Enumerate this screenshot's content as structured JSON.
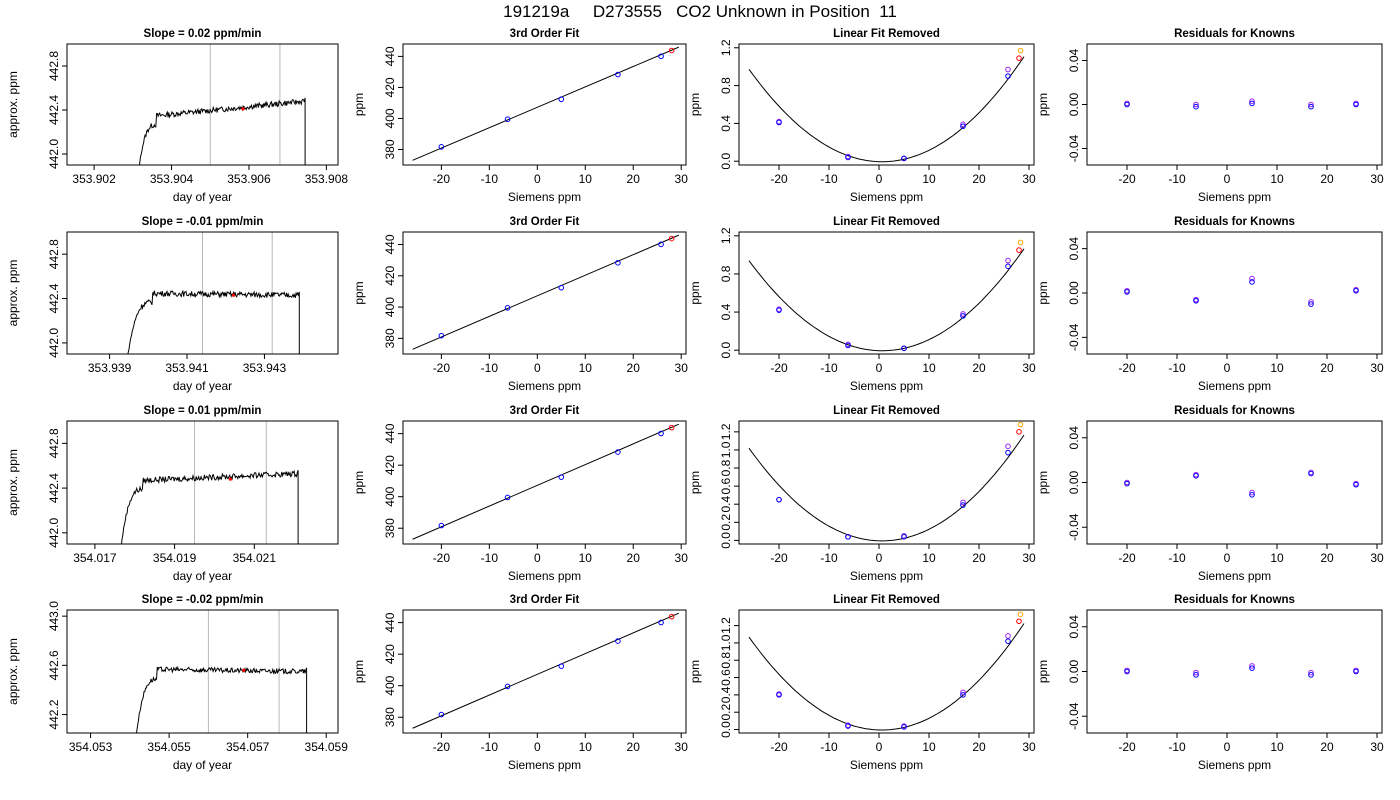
{
  "page_title": "191219a     D273555   CO2 Unknown in Position  11",
  "colors": {
    "line": "#000000",
    "grid_vline": "#b8b8b8",
    "known_points": "#0000ff",
    "unknown_point": "#ff0000",
    "purple_points": "#a020f0",
    "orange_points": "#ffa500"
  },
  "chart_data": [
    {
      "type": "line",
      "row": 0,
      "col": 0,
      "title": "Slope =  0.02  ppm/min",
      "xlabel": "day of year",
      "ylabel": "approx. ppm",
      "xlim": [
        353.9013,
        353.9083
      ],
      "ylim": [
        441.9,
        443.0
      ],
      "xticks": [
        "353.902",
        "353.904",
        "353.906",
        "353.908"
      ],
      "xtick_values": [
        353.902,
        353.904,
        353.906,
        353.908
      ],
      "yticks": [
        "442.0",
        "442.4",
        "442.8"
      ],
      "ytick_values": [
        442.0,
        442.4,
        442.8
      ],
      "vlines": [
        353.905,
        353.9068
      ],
      "trace": {
        "x_start": 353.9031,
        "x_end": 353.90745,
        "plateau_start": 353.9036,
        "level_start": 442.33,
        "level_end": 442.48,
        "noise": 0.025
      },
      "highlight_points": [
        {
          "x": 353.90585,
          "y": 442.41
        }
      ]
    },
    {
      "type": "line",
      "row": 1,
      "col": 0,
      "title": "Slope =  -0.01  ppm/min",
      "xlabel": "day of year",
      "ylabel": "approx. ppm",
      "xlim": [
        353.9379,
        353.9449
      ],
      "ylim": [
        441.9,
        443.0
      ],
      "xticks": [
        "353.939",
        "353.941",
        "353.943"
      ],
      "xtick_values": [
        353.939,
        353.941,
        353.943
      ],
      "yticks": [
        "442.0",
        "442.4",
        "442.8"
      ],
      "ytick_values": [
        442.0,
        442.4,
        442.8
      ],
      "vlines": [
        353.9414,
        353.9432
      ],
      "trace": {
        "x_start": 353.9394,
        "x_end": 353.9439,
        "plateau_start": 353.9401,
        "level_start": 442.45,
        "level_end": 442.43,
        "noise": 0.025
      },
      "highlight_points": [
        {
          "x": 353.9422,
          "y": 442.43
        }
      ]
    },
    {
      "type": "line",
      "row": 2,
      "col": 0,
      "title": "Slope =  0.01  ppm/min",
      "xlabel": "day of year",
      "ylabel": "approx. ppm",
      "xlim": [
        354.0163,
        354.0231
      ],
      "ylim": [
        441.9,
        443.0
      ],
      "xticks": [
        "354.017",
        "354.019",
        "354.021"
      ],
      "xtick_values": [
        354.017,
        354.019,
        354.021
      ],
      "yticks": [
        "442.0",
        "442.4",
        "442.8"
      ],
      "ytick_values": [
        442.0,
        442.4,
        442.8
      ],
      "vlines": [
        354.0195,
        354.0213
      ],
      "trace": {
        "x_start": 354.0176,
        "x_end": 354.0221,
        "plateau_start": 354.0182,
        "level_start": 442.46,
        "level_end": 442.53,
        "noise": 0.025
      },
      "highlight_points": [
        {
          "x": 354.0204,
          "y": 442.48
        }
      ]
    },
    {
      "type": "line",
      "row": 3,
      "col": 0,
      "title": "Slope =  -0.02  ppm/min",
      "xlabel": "day of year",
      "ylabel": "approx. ppm",
      "xlim": [
        354.0524,
        354.0593
      ],
      "ylim": [
        442.05,
        443.05
      ],
      "xticks": [
        "354.053",
        "354.055",
        "354.057",
        "354.059"
      ],
      "xtick_values": [
        354.053,
        354.055,
        354.057,
        354.059
      ],
      "yticks": [
        "442.2",
        "442.6",
        "443.0"
      ],
      "ytick_values": [
        442.2,
        442.6,
        443.0
      ],
      "vlines": [
        354.056,
        354.0578
      ],
      "trace": {
        "x_start": 354.0541,
        "x_end": 354.0585,
        "plateau_start": 354.0547,
        "level_start": 442.57,
        "level_end": 442.55,
        "noise": 0.02
      },
      "highlight_points": [
        {
          "x": 354.0569,
          "y": 442.56
        }
      ]
    },
    {
      "type": "scatter",
      "row": 0,
      "col": 1,
      "title": "3rd Order Fit",
      "xlabel": "Siemens ppm",
      "ylabel": "ppm",
      "xlim": [
        -28,
        31
      ],
      "ylim": [
        370,
        448
      ],
      "xticks": [
        "-20",
        "-10",
        "0",
        "10",
        "20",
        "30"
      ],
      "xtick_values": [
        -20,
        -10,
        0,
        10,
        20,
        30
      ],
      "yticks": [
        "380",
        "400",
        "420",
        "440"
      ],
      "ytick_values": [
        380,
        400,
        420,
        440
      ],
      "fit_line": {
        "x": [
          -26,
          29.5
        ],
        "y": [
          373,
          446
        ]
      },
      "known_points": {
        "x": [
          -20,
          -6.2,
          5.0,
          16.8,
          25.8
        ],
        "y": [
          381.7,
          399.5,
          412.4,
          428.3,
          440.1
        ]
      },
      "unknown_point": {
        "x": 28.0,
        "y": 443.8
      }
    },
    {
      "type": "scatter",
      "row": 1,
      "col": 1,
      "title": "3rd Order Fit",
      "xlabel": "Siemens ppm",
      "ylabel": "ppm",
      "xlim": [
        -28,
        31
      ],
      "ylim": [
        370,
        448
      ],
      "xticks": [
        "-20",
        "-10",
        "0",
        "10",
        "20",
        "30"
      ],
      "xtick_values": [
        -20,
        -10,
        0,
        10,
        20,
        30
      ],
      "yticks": [
        "380",
        "400",
        "420",
        "440"
      ],
      "ytick_values": [
        380,
        400,
        420,
        440
      ],
      "fit_line": {
        "x": [
          -26,
          29.5
        ],
        "y": [
          373,
          446
        ]
      },
      "known_points": {
        "x": [
          -20,
          -6.2,
          5.0,
          16.8,
          25.8
        ],
        "y": [
          381.7,
          399.5,
          412.4,
          428.3,
          440.1
        ]
      },
      "unknown_point": {
        "x": 28.0,
        "y": 443.8
      }
    },
    {
      "type": "scatter",
      "row": 2,
      "col": 1,
      "title": "3rd Order Fit",
      "xlabel": "Siemens ppm",
      "ylabel": "ppm",
      "xlim": [
        -28,
        31
      ],
      "ylim": [
        370,
        448
      ],
      "xticks": [
        "-20",
        "-10",
        "0",
        "10",
        "20",
        "30"
      ],
      "xtick_values": [
        -20,
        -10,
        0,
        10,
        20,
        30
      ],
      "yticks": [
        "380",
        "400",
        "420",
        "440"
      ],
      "ytick_values": [
        380,
        400,
        420,
        440
      ],
      "fit_line": {
        "x": [
          -26,
          29.5
        ],
        "y": [
          373,
          446
        ]
      },
      "known_points": {
        "x": [
          -20,
          -6.2,
          5.0,
          16.8,
          25.8
        ],
        "y": [
          381.7,
          399.5,
          412.4,
          428.3,
          440.1
        ]
      },
      "unknown_point": {
        "x": 28.0,
        "y": 443.8
      }
    },
    {
      "type": "scatter",
      "row": 3,
      "col": 1,
      "title": "3rd Order Fit",
      "xlabel": "Siemens ppm",
      "ylabel": "ppm",
      "xlim": [
        -28,
        31
      ],
      "ylim": [
        370,
        448
      ],
      "xticks": [
        "-20",
        "-10",
        "0",
        "10",
        "20",
        "30"
      ],
      "xtick_values": [
        -20,
        -10,
        0,
        10,
        20,
        30
      ],
      "yticks": [
        "380",
        "400",
        "420",
        "440"
      ],
      "ytick_values": [
        380,
        400,
        420,
        440
      ],
      "fit_line": {
        "x": [
          -26,
          29.5
        ],
        "y": [
          373,
          446
        ]
      },
      "known_points": {
        "x": [
          -20,
          -6.2,
          5.0,
          16.8,
          25.8
        ],
        "y": [
          381.7,
          399.5,
          412.4,
          428.3,
          440.1
        ]
      },
      "unknown_point": {
        "x": 28.0,
        "y": 443.8
      }
    },
    {
      "type": "scatter",
      "row": 0,
      "col": 2,
      "title": "Linear Fit Removed",
      "xlabel": "Siemens ppm",
      "ylabel": "ppm",
      "xlim": [
        -28,
        31
      ],
      "ylim": [
        -0.04,
        1.24
      ],
      "xticks": [
        "-20",
        "-10",
        "0",
        "10",
        "20",
        "30"
      ],
      "xtick_values": [
        -20,
        -10,
        0,
        10,
        20,
        30
      ],
      "yticks": [
        "0.0",
        "0.4",
        "0.8",
        "1.2"
      ],
      "ytick_values": [
        0.0,
        0.4,
        0.8,
        1.2
      ],
      "curve": {
        "a": 0.00138,
        "b": -0.00172,
        "c": -0.005,
        "x_from": -26,
        "x_to": 29
      },
      "blue_points": {
        "x": [
          -20,
          -6.2,
          5.0,
          16.8,
          25.8
        ],
        "y": [
          0.41,
          0.04,
          0.03,
          0.37,
          0.9
        ]
      },
      "purple_points": {
        "x": [
          -20,
          -6.2,
          5.0,
          16.8,
          25.8
        ],
        "y": [
          0.42,
          0.05,
          0.03,
          0.39,
          0.97
        ]
      },
      "red_points": {
        "x": [
          28.0
        ],
        "y": [
          1.09
        ]
      },
      "orange_points": {
        "x": [
          28.3
        ],
        "y": [
          1.17
        ]
      }
    },
    {
      "type": "scatter",
      "row": 1,
      "col": 2,
      "title": "Linear Fit Removed",
      "xlabel": "Siemens ppm",
      "ylabel": "ppm",
      "xlim": [
        -28,
        31
      ],
      "ylim": [
        -0.04,
        1.24
      ],
      "xticks": [
        "-20",
        "-10",
        "0",
        "10",
        "20",
        "30"
      ],
      "xtick_values": [
        -20,
        -10,
        0,
        10,
        20,
        30
      ],
      "yticks": [
        "0.0",
        "0.4",
        "0.8",
        "1.2"
      ],
      "ytick_values": [
        0.0,
        0.4,
        0.8,
        1.2
      ],
      "curve": {
        "a": 0.00133,
        "b": -0.00172,
        "c": -0.005,
        "x_from": -26,
        "x_to": 29
      },
      "blue_points": {
        "x": [
          -20,
          -6.2,
          5.0,
          16.8,
          25.8
        ],
        "y": [
          0.42,
          0.05,
          0.02,
          0.36,
          0.88
        ]
      },
      "purple_points": {
        "x": [
          -20,
          -6.2,
          5.0,
          16.8,
          25.8
        ],
        "y": [
          0.43,
          0.06,
          0.02,
          0.38,
          0.94
        ]
      },
      "red_points": {
        "x": [
          28.0
        ],
        "y": [
          1.05
        ]
      },
      "orange_points": {
        "x": [
          28.3
        ],
        "y": [
          1.13
        ]
      }
    },
    {
      "type": "scatter",
      "row": 2,
      "col": 2,
      "title": "Linear Fit Removed",
      "xlabel": "Siemens ppm",
      "ylabel": "ppm",
      "xlim": [
        -28,
        31
      ],
      "ylim": [
        -0.04,
        1.32
      ],
      "xticks": [
        "-20",
        "-10",
        "0",
        "10",
        "20",
        "30"
      ],
      "xtick_values": [
        -20,
        -10,
        0,
        10,
        20,
        30
      ],
      "yticks": [
        "0.0",
        "0.2",
        "0.4",
        "0.6",
        "0.8",
        "1.0",
        "1.2"
      ],
      "ytick_values": [
        0.0,
        0.2,
        0.4,
        0.6,
        0.8,
        1.0,
        1.2
      ],
      "curve": {
        "a": 0.00145,
        "b": -0.0017,
        "c": -0.005,
        "x_from": -26,
        "x_to": 29
      },
      "blue_points": {
        "x": [
          -20,
          -6.2,
          5.0,
          16.8,
          25.8
        ],
        "y": [
          0.45,
          0.04,
          0.04,
          0.39,
          0.97
        ]
      },
      "purple_points": {
        "x": [
          -20,
          -6.2,
          5.0,
          16.8,
          25.8
        ],
        "y": [
          0.45,
          0.04,
          0.05,
          0.42,
          1.04
        ]
      },
      "red_points": {
        "x": [
          28.0
        ],
        "y": [
          1.2
        ]
      },
      "orange_points": {
        "x": [
          28.3
        ],
        "y": [
          1.28
        ]
      }
    },
    {
      "type": "scatter",
      "row": 3,
      "col": 2,
      "title": "Linear Fit Removed",
      "xlabel": "Siemens ppm",
      "ylabel": "ppm",
      "xlim": [
        -28,
        31
      ],
      "ylim": [
        -0.04,
        1.38
      ],
      "xticks": [
        "-20",
        "-10",
        "0",
        "10",
        "20",
        "30"
      ],
      "xtick_values": [
        -20,
        -10,
        0,
        10,
        20,
        30
      ],
      "yticks": [
        "0.0",
        "0.2",
        "0.4",
        "0.6",
        "0.8",
        "1.0",
        "1.2"
      ],
      "ytick_values": [
        0.0,
        0.2,
        0.4,
        0.6,
        0.8,
        1.0,
        1.2
      ],
      "curve": {
        "a": 0.00152,
        "b": -0.0017,
        "c": -0.005,
        "x_from": -26,
        "x_to": 29
      },
      "blue_points": {
        "x": [
          -20,
          -6.2,
          5.0,
          16.8,
          25.8
        ],
        "y": [
          0.4,
          0.04,
          0.03,
          0.4,
          1.02
        ]
      },
      "purple_points": {
        "x": [
          -20,
          -6.2,
          5.0,
          16.8,
          25.8
        ],
        "y": [
          0.41,
          0.05,
          0.04,
          0.43,
          1.08
        ]
      },
      "red_points": {
        "x": [
          28.0
        ],
        "y": [
          1.25
        ]
      },
      "orange_points": {
        "x": [
          28.3
        ],
        "y": [
          1.33
        ]
      }
    },
    {
      "type": "scatter",
      "row": 0,
      "col": 3,
      "title": "Residuals for Knowns",
      "xlabel": "Siemens ppm",
      "ylabel": "ppm",
      "xlim": [
        -28,
        31
      ],
      "ylim": [
        -0.055,
        0.055
      ],
      "xticks": [
        "-20",
        "-10",
        "0",
        "10",
        "20",
        "30"
      ],
      "xtick_values": [
        -20,
        -10,
        0,
        10,
        20,
        30
      ],
      "yticks": [
        "-0.04",
        "0.00",
        "0.04"
      ],
      "ytick_values": [
        -0.04,
        0.0,
        0.04
      ],
      "blue_points": {
        "x": [
          -20,
          -6.2,
          5.0,
          16.8,
          25.8
        ],
        "y": [
          0.0,
          -0.002,
          0.001,
          -0.002,
          0.0
        ]
      },
      "purple_points": {
        "x": [
          -20,
          -6.2,
          5.0,
          16.8,
          25.8
        ],
        "y": [
          0.001,
          0.0,
          0.003,
          0.0,
          0.001
        ]
      }
    },
    {
      "type": "scatter",
      "row": 1,
      "col": 3,
      "title": "Residuals for Knowns",
      "xlabel": "Siemens ppm",
      "ylabel": "ppm",
      "xlim": [
        -28,
        31
      ],
      "ylim": [
        -0.055,
        0.055
      ],
      "xticks": [
        "-20",
        "-10",
        "0",
        "10",
        "20",
        "30"
      ],
      "xtick_values": [
        -20,
        -10,
        0,
        10,
        20,
        30
      ],
      "yticks": [
        "-0.04",
        "0.00",
        "0.04"
      ],
      "ytick_values": [
        -0.04,
        0.0,
        0.04
      ],
      "blue_points": {
        "x": [
          -20,
          -6.2,
          5.0,
          16.8,
          25.8
        ],
        "y": [
          0.001,
          -0.007,
          0.01,
          -0.01,
          0.002
        ]
      },
      "purple_points": {
        "x": [
          -20,
          -6.2,
          5.0,
          16.8,
          25.8
        ],
        "y": [
          0.002,
          -0.006,
          0.013,
          -0.008,
          0.003
        ]
      }
    },
    {
      "type": "scatter",
      "row": 2,
      "col": 3,
      "title": "Residuals for Knowns",
      "xlabel": "Siemens ppm",
      "ylabel": "ppm",
      "xlim": [
        -28,
        31
      ],
      "ylim": [
        -0.055,
        0.055
      ],
      "xticks": [
        "-20",
        "-10",
        "0",
        "10",
        "20",
        "30"
      ],
      "xtick_values": [
        -20,
        -10,
        0,
        10,
        20,
        30
      ],
      "yticks": [
        "-0.04",
        "0.00",
        "0.04"
      ],
      "ytick_values": [
        -0.04,
        0.0,
        0.04
      ],
      "blue_points": {
        "x": [
          -20,
          -6.2,
          5.0,
          16.8,
          25.8
        ],
        "y": [
          -0.001,
          0.006,
          -0.011,
          0.008,
          -0.002
        ]
      },
      "purple_points": {
        "x": [
          -20,
          -6.2,
          5.0,
          16.8,
          25.8
        ],
        "y": [
          0.0,
          0.007,
          -0.009,
          0.009,
          -0.001
        ]
      }
    },
    {
      "type": "scatter",
      "row": 3,
      "col": 3,
      "title": "Residuals for Knowns",
      "xlabel": "Siemens ppm",
      "ylabel": "ppm",
      "xlim": [
        -28,
        31
      ],
      "ylim": [
        -0.055,
        0.055
      ],
      "xticks": [
        "-20",
        "-10",
        "0",
        "10",
        "20",
        "30"
      ],
      "xtick_values": [
        -20,
        -10,
        0,
        10,
        20,
        30
      ],
      "yticks": [
        "-0.04",
        "0.00",
        "0.04"
      ],
      "ytick_values": [
        -0.04,
        0.0,
        0.04
      ],
      "blue_points": {
        "x": [
          -20,
          -6.2,
          5.0,
          16.8,
          25.8
        ],
        "y": [
          0.0,
          -0.003,
          0.003,
          -0.003,
          0.0
        ]
      },
      "purple_points": {
        "x": [
          -20,
          -6.2,
          5.0,
          16.8,
          25.8
        ],
        "y": [
          0.001,
          -0.001,
          0.005,
          -0.001,
          0.001
        ]
      }
    }
  ]
}
